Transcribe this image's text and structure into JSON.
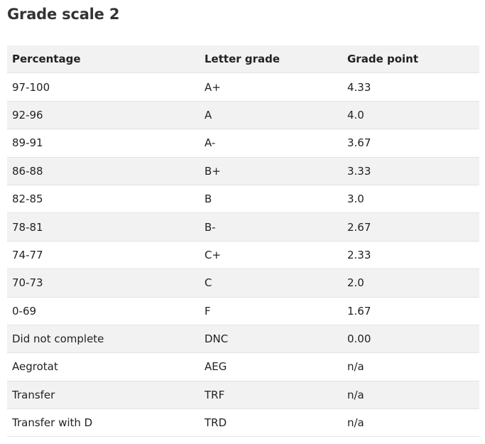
{
  "header": {
    "title": "Grade scale 2"
  },
  "table": {
    "headers": [
      "Percentage",
      "Letter grade",
      "Grade point"
    ],
    "rows": [
      [
        "97-100",
        "A+",
        "4.33"
      ],
      [
        "92-96",
        "A",
        "4.0"
      ],
      [
        "89-91",
        "A-",
        "3.67"
      ],
      [
        "86-88",
        "B+",
        "3.33"
      ],
      [
        "82-85",
        "B",
        "3.0"
      ],
      [
        "78-81",
        "B-",
        "2.67"
      ],
      [
        "74-77",
        "C+",
        "2.33"
      ],
      [
        "70-73",
        "C",
        "2.0"
      ],
      [
        "0-69",
        "F",
        "1.67"
      ],
      [
        "Did not complete",
        "DNC",
        "0.00"
      ],
      [
        "Aegrotat",
        "AEG",
        "n/a"
      ],
      [
        "Transfer",
        "TRF",
        "n/a"
      ],
      [
        "Transfer with D",
        "TRD",
        "n/a"
      ]
    ]
  }
}
